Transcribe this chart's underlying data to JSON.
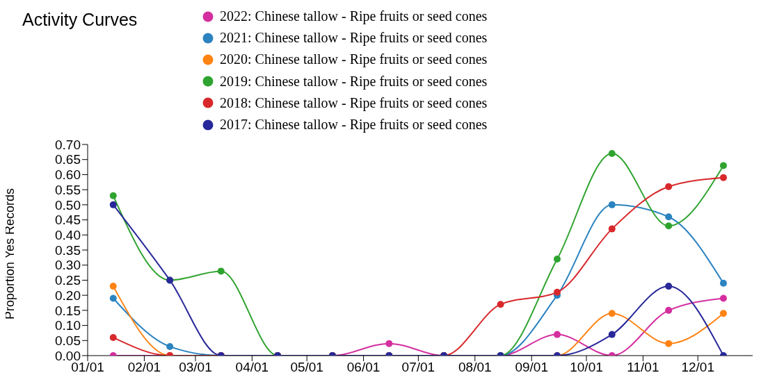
{
  "chart_data": {
    "type": "line",
    "title": "Activity Curves",
    "ylabel": "Proportion Yes Records",
    "x": [
      "--01-15",
      "--02-15",
      "--03-15",
      "--04-15",
      "--05-15",
      "--06-15",
      "--07-15",
      "--08-15",
      "--09-15",
      "--10-15",
      "--11-15",
      "--12-15"
    ],
    "xlim": [
      "--01-01",
      "--12-31"
    ],
    "xticks": [
      {
        "value": "--01-01",
        "label": "01/01"
      },
      {
        "value": "--02-01",
        "label": "02/01"
      },
      {
        "value": "--03-01",
        "label": "03/01"
      },
      {
        "value": "--04-01",
        "label": "04/01"
      },
      {
        "value": "--05-01",
        "label": "05/01"
      },
      {
        "value": "--06-01",
        "label": "06/01"
      },
      {
        "value": "--07-01",
        "label": "07/01"
      },
      {
        "value": "--08-01",
        "label": "08/01"
      },
      {
        "value": "--09-01",
        "label": "09/01"
      },
      {
        "value": "--10-01",
        "label": "10/01"
      },
      {
        "value": "--11-01",
        "label": "11/01"
      },
      {
        "value": "--12-01",
        "label": "12/01"
      }
    ],
    "ylim": [
      0,
      0.7
    ],
    "yticks": [
      {
        "value": 0,
        "label": "0.00"
      },
      {
        "value": 0.05,
        "label": "0.05"
      },
      {
        "value": 0.1,
        "label": "0.10"
      },
      {
        "value": 0.15,
        "label": "0.15"
      },
      {
        "value": 0.2,
        "label": "0.20"
      },
      {
        "value": 0.25,
        "label": "0.25"
      },
      {
        "value": 0.3,
        "label": "0.30"
      },
      {
        "value": 0.35,
        "label": "0.35"
      },
      {
        "value": 0.4,
        "label": "0.40"
      },
      {
        "value": 0.45,
        "label": "0.45"
      },
      {
        "value": 0.5,
        "label": "0.50"
      },
      {
        "value": 0.55,
        "label": "0.55"
      },
      {
        "value": 0.6,
        "label": "0.60"
      },
      {
        "value": 0.65,
        "label": "0.65"
      },
      {
        "value": 0.7,
        "label": "0.70"
      }
    ],
    "grid": false,
    "legend": "top",
    "marker": "circle",
    "line_style": "solid",
    "series": [
      {
        "name": "2022: Chinese tallow - Ripe fruits or seed cones",
        "color": "#d42f9f",
        "values": [
          0,
          0,
          0,
          0,
          0,
          0.04,
          0,
          0,
          0.07,
          0,
          0.15,
          0.19
        ]
      },
      {
        "name": "2021: Chinese tallow - Ripe fruits or seed cones",
        "color": "#2b83c0",
        "values": [
          0.19,
          0.03,
          0,
          0,
          0,
          0,
          0,
          0,
          0.2,
          0.5,
          0.46,
          0.24
        ]
      },
      {
        "name": "2020: Chinese tallow - Ripe fruits or seed cones",
        "color": "#ff8313",
        "values": [
          0.23,
          0,
          0,
          0,
          0,
          0,
          0,
          0,
          0,
          0.14,
          0.04,
          0.14
        ]
      },
      {
        "name": "2019: Chinese tallow - Ripe fruits or seed cones",
        "color": "#2fa32f",
        "values": [
          0.53,
          0.25,
          0.28,
          0,
          0,
          0,
          0,
          0,
          0.32,
          0.67,
          0.43,
          0.63
        ]
      },
      {
        "name": "2018: Chinese tallow - Ripe fruits or seed cones",
        "color": "#d8282b",
        "values": [
          0.06,
          0,
          0,
          0,
          0,
          0,
          0,
          0.17,
          0.21,
          0.42,
          0.56,
          0.59
        ]
      },
      {
        "name": "2017: Chinese tallow - Ripe fruits or seed cones",
        "color": "#28289a",
        "values": [
          0.5,
          0.25,
          0,
          0,
          0,
          0,
          0,
          0,
          0,
          0.07,
          0.23,
          0
        ]
      }
    ]
  }
}
